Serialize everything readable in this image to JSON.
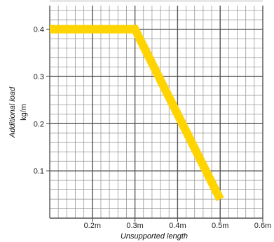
{
  "chart_data": {
    "type": "line",
    "xlabel": "Unsupported length",
    "ylabel": "Additional load",
    "ylabel_unit": "kg/m",
    "xlim": [
      0.1,
      0.6
    ],
    "ylim": [
      0.0,
      0.45
    ],
    "x_ticks": [
      {
        "value": 0.2,
        "label": "0.2m"
      },
      {
        "value": 0.3,
        "label": "0.3m"
      },
      {
        "value": 0.4,
        "label": "0.4m"
      },
      {
        "value": 0.5,
        "label": "0.5m"
      },
      {
        "value": 0.6,
        "label": "0.6m"
      }
    ],
    "y_ticks": [
      {
        "value": 0.1,
        "label": "0.1"
      },
      {
        "value": 0.2,
        "label": "0.2"
      },
      {
        "value": 0.3,
        "label": "0.3"
      },
      {
        "value": 0.4,
        "label": "0.4"
      }
    ],
    "grid": true,
    "x_minor_step": 0.02,
    "y_minor_step": 0.02,
    "series": [
      {
        "color": "#FFD400",
        "x": [
          0.1,
          0.3,
          0.5
        ],
        "y": [
          0.4,
          0.4,
          0.04
        ]
      }
    ]
  }
}
